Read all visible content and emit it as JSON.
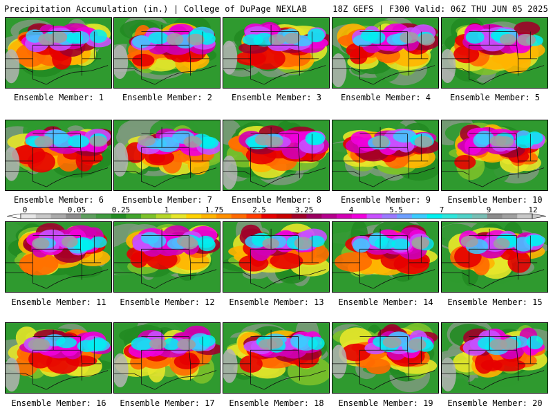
{
  "header": {
    "title_left": "Precipitation Accumulation (in.) | College of DuPage NEXLAB",
    "title_right": "18Z GEFS | F300 Valid: 06Z THU JUN 05 2025"
  },
  "panel_label_prefix": "Ensemble Member:",
  "members": [
    "1",
    "2",
    "3",
    "4",
    "5",
    "6",
    "7",
    "8",
    "9",
    "10",
    "11",
    "12",
    "13",
    "14",
    "15",
    "16",
    "17",
    "18",
    "19",
    "20"
  ],
  "colorbar": {
    "tick_labels": [
      "0",
      "0.05",
      "0.25",
      "1",
      "1.75",
      "2.5",
      "3.25",
      "4",
      "5.5",
      "7",
      "9",
      "12"
    ],
    "colors": [
      "#e6e6e6",
      "#c8c8c8",
      "#aaaaaa",
      "#8c8c8c",
      "#5e9e5e",
      "#3f9a3f",
      "#228b22",
      "#41a42c",
      "#7cc12a",
      "#b5d62a",
      "#e6e62a",
      "#ffd200",
      "#ffb400",
      "#ff9000",
      "#ff6a00",
      "#ff3c00",
      "#e60000",
      "#c80000",
      "#a0002a",
      "#9a0060",
      "#b4008c",
      "#d200b4",
      "#f000dc",
      "#c850ff",
      "#9a7aff",
      "#6ea0ff",
      "#3ccbff",
      "#00f0f0",
      "#2ee6dc",
      "#50d2c8",
      "#78beb4",
      "#8c8c8c",
      "#a0a0a0",
      "#c8c8c8"
    ]
  }
}
